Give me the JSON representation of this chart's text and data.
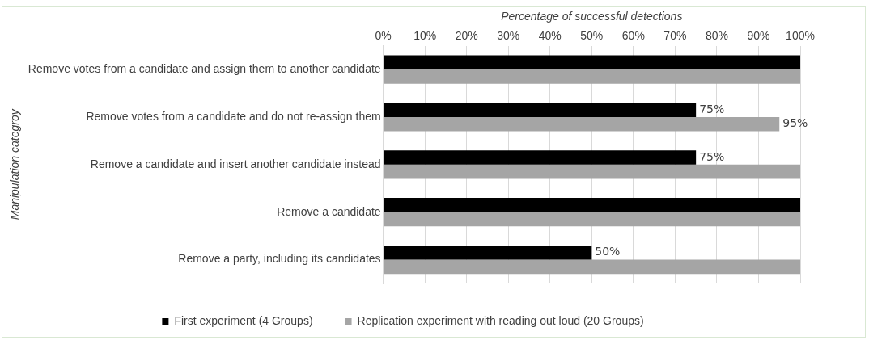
{
  "chart_data": {
    "type": "bar",
    "orientation": "horizontal",
    "xlabel": "Percentage of successful detections",
    "ylabel": "Manipulation categroy",
    "categories": [
      "Remove votes from a candidate and assign them to another candidate",
      "Remove votes from a candidate and do not re-assign them",
      "Remove a candidate and insert another candidate instead",
      "Remove a candidate",
      "Remove a party, including its candidates"
    ],
    "series": [
      {
        "name": "First experiment (4 Groups)",
        "color": "#000000",
        "values": [
          100,
          75,
          75,
          100,
          50
        ],
        "value_labels": [
          null,
          "75%",
          "75%",
          null,
          "50%"
        ]
      },
      {
        "name": "Replication experiment with reading out loud (20 Groups)",
        "color": "#a5a5a5",
        "values": [
          100,
          95,
          100,
          100,
          100
        ],
        "value_labels": [
          null,
          "95%",
          null,
          null,
          null
        ]
      }
    ],
    "xlim": [
      0,
      100
    ],
    "xticks": [
      {
        "value": 0,
        "label": "0%"
      },
      {
        "value": 10,
        "label": "10%"
      },
      {
        "value": 20,
        "label": "20%"
      },
      {
        "value": 30,
        "label": "30%"
      },
      {
        "value": 40,
        "label": "40%"
      },
      {
        "value": 50,
        "label": "50%"
      },
      {
        "value": 60,
        "label": "60%"
      },
      {
        "value": 70,
        "label": "70%"
      },
      {
        "value": 80,
        "label": "80%"
      },
      {
        "value": 90,
        "label": "90%"
      },
      {
        "value": 100,
        "label": "100%"
      }
    ],
    "grid": "x",
    "legend": "bottom"
  }
}
